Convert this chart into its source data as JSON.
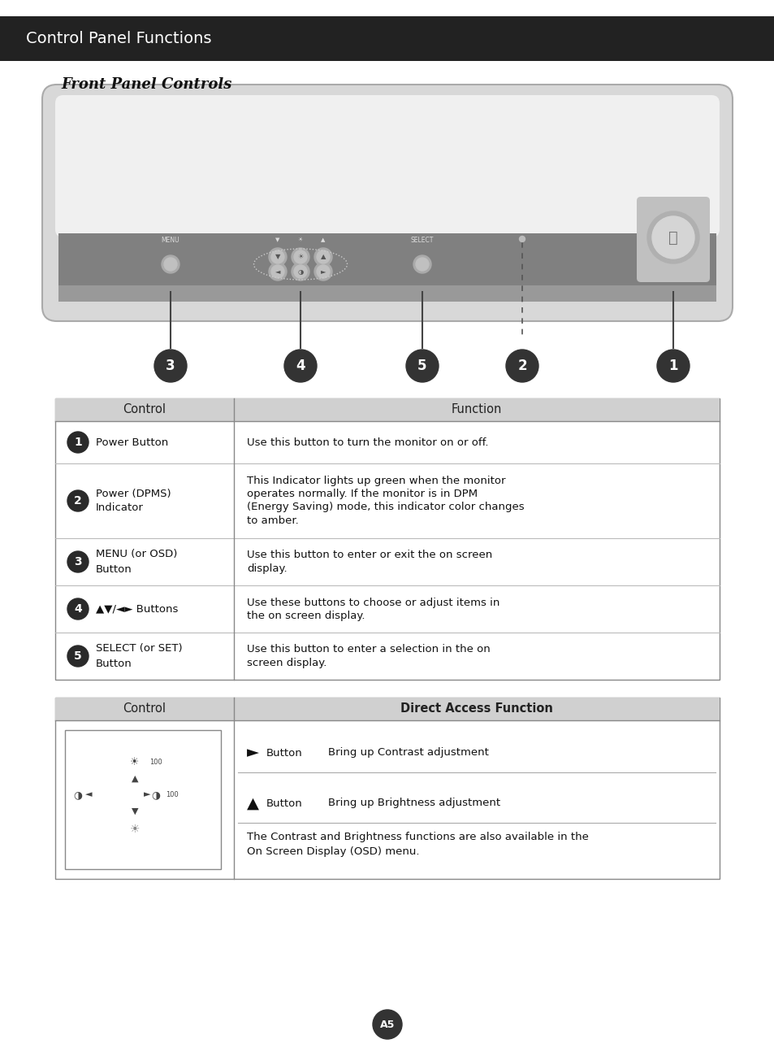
{
  "title": "Control Panel Functions",
  "subtitle": "Front Panel Controls",
  "header_bg": "#222222",
  "header_text_color": "#ffffff",
  "page_bg": "#ffffff",
  "table1_header": [
    "Control",
    "Function"
  ],
  "table1_rows": [
    {
      "num": "1",
      "control": "Power Button",
      "function": "Use this button to turn the monitor on or off."
    },
    {
      "num": "2",
      "control": "Power (DPMS)\nIndicator",
      "function": "This Indicator lights up green when the monitor\noperates normally. If the monitor is in DPM\n(Energy Saving) mode, this indicator color changes\nto amber."
    },
    {
      "num": "3",
      "control": "MENU (or OSD)\nButton",
      "function": "Use this button to enter or exit the on screen\ndisplay."
    },
    {
      "num": "4",
      "control": "▲▼/◄► Buttons",
      "function": "Use these buttons to choose or adjust items in\nthe on screen display."
    },
    {
      "num": "5",
      "control": "SELECT (or SET)\nButton",
      "function": "Use this button to enter a selection in the on\nscreen display."
    }
  ],
  "table2_header": [
    "Control",
    "Direct Access Function"
  ],
  "table2_rows": [
    {
      "symbol": "►",
      "label": "Button",
      "function": "Bring up Contrast adjustment"
    },
    {
      "symbol": "▲",
      "label": "Button",
      "function": "Bring up Brightness adjustment"
    }
  ],
  "table2_note": "The Contrast and Brightness functions are also available in the\nOn Screen Display (OSD) menu.",
  "page_num": "A5"
}
